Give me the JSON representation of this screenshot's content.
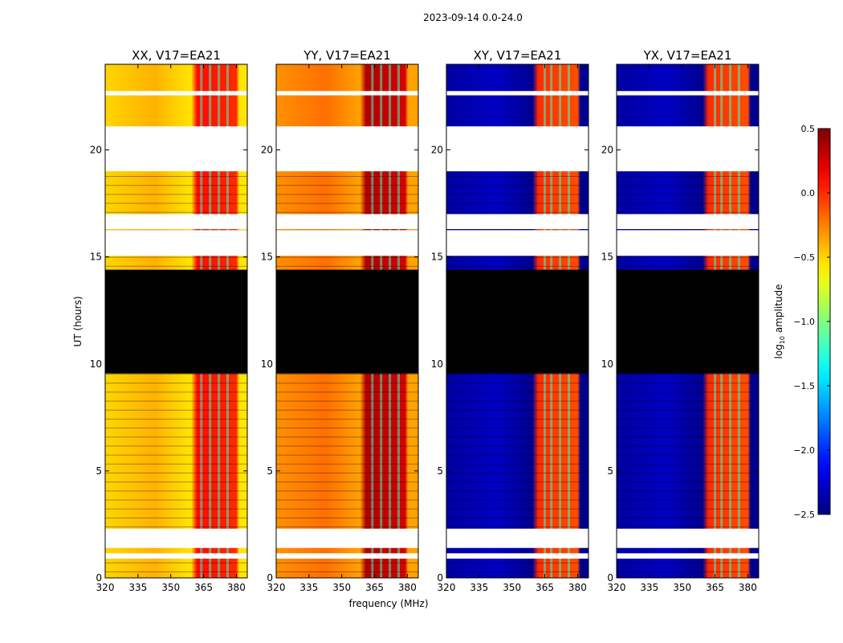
{
  "figure": {
    "suptitle": "2023-09-14 0.0-24.0",
    "ylabel": "UT (hours)",
    "xlabel": "frequency (MHz)"
  },
  "colorbar": {
    "label": "log",
    "label_sub": "10",
    "label_rest": " amplitude",
    "range": [
      -2.5,
      0.5
    ],
    "ticks": [
      "0.5",
      "0.0",
      "−0.5",
      "−1.0",
      "−1.5",
      "−2.0",
      "−2.5"
    ],
    "tick_values": [
      0.5,
      0.0,
      -0.5,
      -1.0,
      -1.5,
      -2.0,
      -2.5
    ],
    "colormap": "jet"
  },
  "chart_data": {
    "type": "heatmap",
    "x_range": [
      320,
      385
    ],
    "y_range": [
      0,
      24
    ],
    "x_ticks": [
      "320",
      "335",
      "350",
      "365",
      "380"
    ],
    "x_tick_values": [
      320,
      335,
      350,
      365,
      380
    ],
    "y_ticks": [
      "0",
      "5",
      "10",
      "15",
      "20"
    ],
    "y_tick_values": [
      0,
      5,
      10,
      15,
      20
    ],
    "no_data_hours": [
      [
        22.55,
        22.75
      ],
      [
        21.1,
        19.0
      ],
      [
        16.3,
        17.0
      ],
      [
        15.05,
        16.25
      ],
      [
        2.3,
        1.4
      ],
      [
        0.9,
        1.15
      ]
    ],
    "flagged_hours": [
      [
        9.55,
        14.4
      ]
    ],
    "panels": [
      {
        "title": "XX, V17=EA21",
        "background": -0.55,
        "band_range": [
          362,
          380
        ],
        "band_value": 0.1,
        "rfi_channels": [
          364,
          368,
          372,
          376
        ]
      },
      {
        "title": "YY, V17=EA21",
        "background": -0.35,
        "band_range": [
          361,
          379
        ],
        "band_value": 0.35,
        "rfi_channels": [
          364,
          368,
          372,
          376
        ]
      },
      {
        "title": "XY, V17=EA21",
        "background": -2.45,
        "band_range": [
          362,
          380
        ],
        "band_value": 0.0,
        "rfi_channels": [
          365,
          368,
          372,
          376
        ]
      },
      {
        "title": "YX, V17=EA21",
        "background": -2.45,
        "band_range": [
          362,
          380
        ],
        "band_value": 0.0,
        "rfi_channels": [
          365,
          368,
          372,
          376
        ]
      }
    ]
  }
}
